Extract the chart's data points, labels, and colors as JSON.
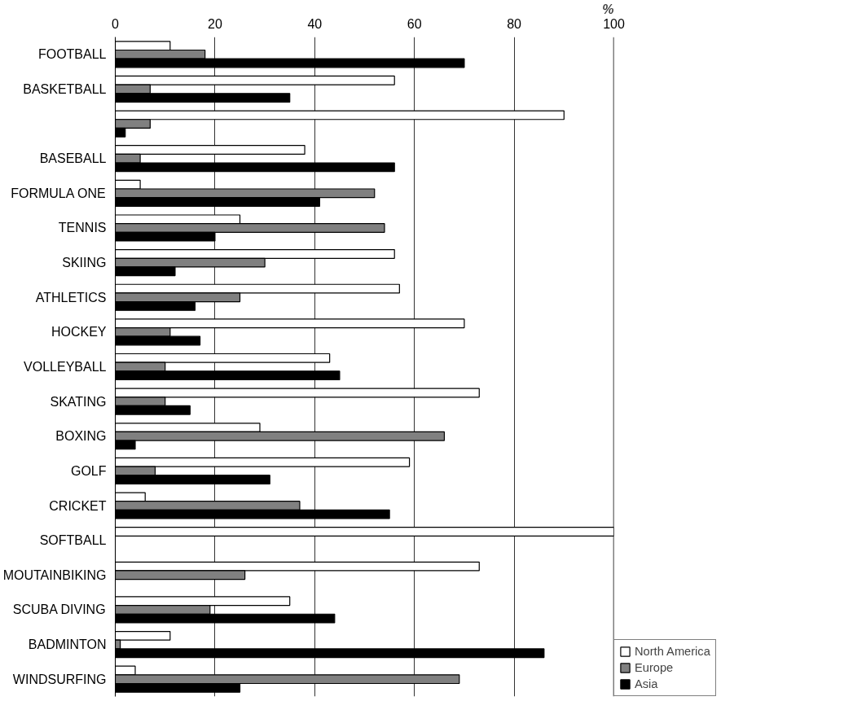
{
  "chart_data": {
    "type": "bar",
    "orientation": "horizontal",
    "xlabel": "%",
    "categories": [
      "FOOTBALL",
      "BASKETBALL",
      null,
      "BASEBALL",
      "FORMULA ONE",
      "TENNIS",
      "SKIING",
      "ATHLETICS",
      "HOCKEY",
      "VOLLEYBALL",
      "SKATING",
      "BOXING",
      "GOLF",
      "CRICKET",
      "SOFTBALL",
      "MOUTAINBIKING",
      "SCUBA DIVING",
      "BADMINTON",
      "WINDSURFING"
    ],
    "series": [
      {
        "name": "North America",
        "color": "#ffffff",
        "values": [
          11,
          56,
          90,
          38,
          5,
          25,
          56,
          57,
          70,
          43,
          73,
          29,
          59,
          6,
          100,
          73,
          35,
          11,
          4
        ]
      },
      {
        "name": "Europe",
        "color": "#808080",
        "values": [
          18,
          7,
          7,
          5,
          52,
          54,
          30,
          25,
          11,
          10,
          10,
          66,
          8,
          37,
          null,
          26,
          19,
          1,
          69
        ]
      },
      {
        "name": "Asia",
        "color": "#000000",
        "values": [
          70,
          35,
          2,
          56,
          41,
          20,
          12,
          16,
          17,
          45,
          15,
          4,
          31,
          55,
          null,
          null,
          44,
          86,
          25
        ]
      }
    ],
    "xlim": [
      0,
      100
    ],
    "xticks": [
      0,
      20,
      40,
      60,
      80,
      100
    ],
    "grid": "x",
    "legend": "bottom right"
  }
}
